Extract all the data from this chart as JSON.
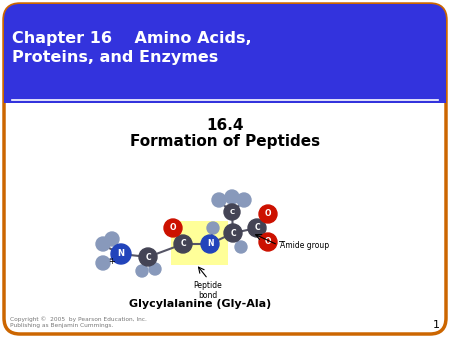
{
  "title_text": "Chapter 16    Amino Acids,\nProteins, and Enzymes",
  "subtitle1": "16.4",
  "subtitle2": "Formation of Peptides",
  "copyright": "Copyright ©  2005  by Pearson Education, Inc.\nPublishing as Benjamin Cummings.",
  "slide_number": "1",
  "bg_color": "#ffffff",
  "header_bg": "#3333dd",
  "header_text_color": "#ffffff",
  "outer_border_color": "#cc6600",
  "molecule_label": "Glycylalanine (Gly-Ala)",
  "peptide_bond_label": "Peptide\nbond",
  "amide_group_label": "Amide group",
  "atom_C_color": "#444455",
  "atom_N_color": "#2244bb",
  "atom_O_color": "#cc1100",
  "atom_H_color": "#8899bb",
  "bond_color": "#555566",
  "yellow_box_color": "#ffff99"
}
